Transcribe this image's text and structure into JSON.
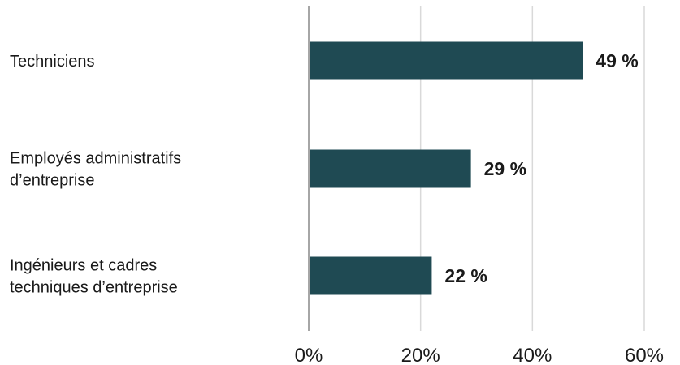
{
  "chart_data": {
    "type": "bar",
    "orientation": "horizontal",
    "categories": [
      [
        "Techniciens"
      ],
      [
        "Employés administratifs",
        "d’entreprise"
      ],
      [
        "Ingénieurs et cadres",
        "techniques d’entreprise"
      ]
    ],
    "values": [
      49,
      29,
      22
    ],
    "value_labels": [
      "49 %",
      "29 %",
      "22 %"
    ],
    "xlim": [
      0,
      60
    ],
    "x_ticks": [
      0,
      20,
      40,
      60
    ],
    "x_tick_labels": [
      "0%",
      "20%",
      "40%",
      "60%"
    ],
    "title": "",
    "xlabel": "",
    "ylabel": "",
    "grid": "vertical",
    "legend": "none",
    "bar_color": "#1f4a53",
    "grid_color": "#d9d9d9",
    "axis_color": "#a6a6a6"
  }
}
